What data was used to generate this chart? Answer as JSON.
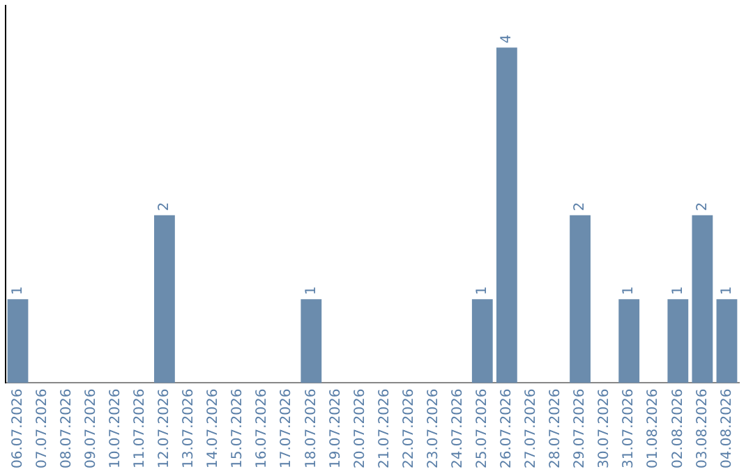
{
  "chart_data": {
    "type": "bar",
    "categories": [
      "06.07.2026",
      "07.07.2026",
      "08.07.2026",
      "09.07.2026",
      "10.07.2026",
      "11.07.2026",
      "12.07.2026",
      "13.07.2026",
      "14.07.2026",
      "15.07.2026",
      "16.07.2026",
      "17.07.2026",
      "18.07.2026",
      "19.07.2026",
      "20.07.2026",
      "21.07.2026",
      "22.07.2026",
      "23.07.2026",
      "24.07.2026",
      "25.07.2026",
      "26.07.2026",
      "27.07.2026",
      "28.07.2026",
      "29.07.2026",
      "30.07.2026",
      "31.07.2026",
      "01.08.2026",
      "02.08.2026",
      "03.08.2026",
      "04.08.2026"
    ],
    "values": [
      1,
      0,
      0,
      0,
      0,
      0,
      2,
      0,
      0,
      0,
      0,
      0,
      1,
      0,
      0,
      0,
      0,
      0,
      0,
      1,
      4,
      0,
      0,
      2,
      0,
      1,
      0,
      1,
      2,
      1
    ],
    "value_labels": [
      "1",
      null,
      null,
      null,
      null,
      null,
      "2",
      null,
      null,
      null,
      null,
      null,
      "1",
      null,
      null,
      null,
      null,
      null,
      null,
      "1",
      "4",
      null,
      null,
      "2",
      null,
      "1",
      null,
      "1",
      "2",
      "1"
    ],
    "color": "#6b8cad",
    "grid": false,
    "legend": false
  }
}
